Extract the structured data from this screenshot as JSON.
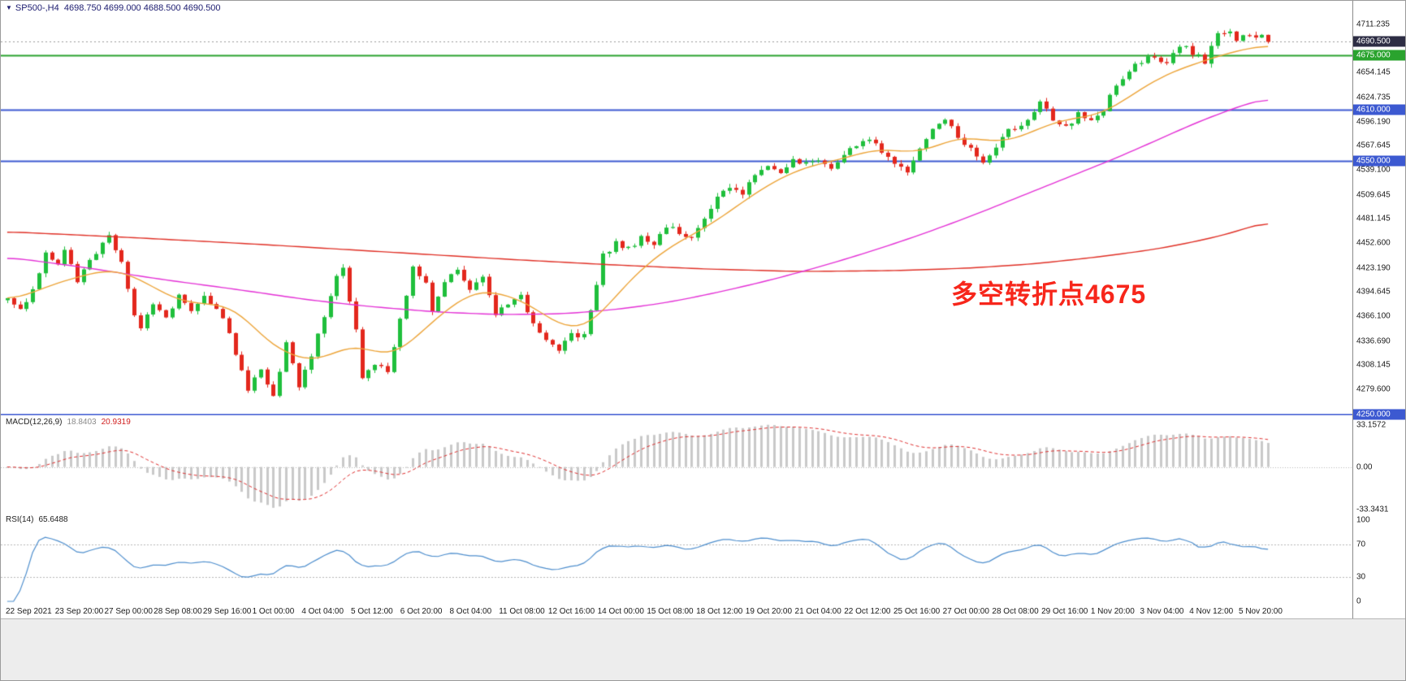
{
  "header": {
    "dropdown_icon": "▼",
    "symbol_timeframe": "SP500-,H4",
    "ohlc": "4698.750 4699.000 4688.500 4690.500"
  },
  "annotation": {
    "text": "多空转折点4675",
    "color": "#f7261b"
  },
  "chart_data": {
    "type": "candlestick",
    "symbol": "SP500-",
    "timeframe": "H4",
    "bars": 200,
    "seed": 77,
    "ylim": [
      4249,
      4739
    ],
    "up_color": "#1fbf3c",
    "down_color": "#e3271d",
    "current_price": 4690.5,
    "last_bar": {
      "open": 4698.75,
      "high": 4699.0,
      "low": 4688.5,
      "close": 4690.5
    },
    "price_ticks": [
      "4711.235",
      "4654.145",
      "4624.735",
      "4596.190",
      "4567.645",
      "4539.100",
      "4509.645",
      "4481.145",
      "4452.600",
      "4423.190",
      "4394.645",
      "4366.100",
      "4336.690",
      "4308.145",
      "4279.600"
    ],
    "badges": [
      {
        "label": "4690.500",
        "price": 4690.5,
        "bg": "#2d2d44"
      },
      {
        "label": "4675.000",
        "price": 4675.0,
        "bg": "#2aa32e"
      },
      {
        "label": "4610.000",
        "price": 4610.0,
        "bg": "#3c59d1"
      },
      {
        "label": "4550.000",
        "price": 4550.0,
        "bg": "#3c59d1"
      },
      {
        "label": "4250.000",
        "price": 4250.0,
        "bg": "#3c59d1"
      }
    ],
    "hlines": [
      {
        "price": 4675.0,
        "color": "#2aa32e",
        "width": 2
      },
      {
        "price": 4610.0,
        "color": "#3c59d1",
        "width": 2
      },
      {
        "price": 4550.0,
        "color": "#3c59d1",
        "width": 2
      },
      {
        "price": 4250.0,
        "color": "#3c59d1",
        "width": 2
      }
    ],
    "price_path_anchors": [
      [
        0,
        4388
      ],
      [
        2,
        4372
      ],
      [
        4,
        4398
      ],
      [
        6,
        4442
      ],
      [
        8,
        4430
      ],
      [
        9,
        4448
      ],
      [
        11,
        4408
      ],
      [
        13,
        4432
      ],
      [
        15,
        4450
      ],
      [
        16,
        4462
      ],
      [
        18,
        4428
      ],
      [
        20,
        4368
      ],
      [
        21,
        4352
      ],
      [
        23,
        4380
      ],
      [
        25,
        4365
      ],
      [
        27,
        4392
      ],
      [
        29,
        4370
      ],
      [
        31,
        4390
      ],
      [
        33,
        4378
      ],
      [
        35,
        4345
      ],
      [
        37,
        4300
      ],
      [
        38,
        4278
      ],
      [
        40,
        4305
      ],
      [
        42,
        4270
      ],
      [
        44,
        4335
      ],
      [
        46,
        4280
      ],
      [
        48,
        4320
      ],
      [
        50,
        4368
      ],
      [
        52,
        4412
      ],
      [
        53,
        4420
      ],
      [
        55,
        4350
      ],
      [
        56,
        4292
      ],
      [
        58,
        4310
      ],
      [
        60,
        4300
      ],
      [
        62,
        4360
      ],
      [
        64,
        4425
      ],
      [
        66,
        4405
      ],
      [
        67,
        4375
      ],
      [
        69,
        4408
      ],
      [
        71,
        4418
      ],
      [
        73,
        4395
      ],
      [
        75,
        4415
      ],
      [
        77,
        4365
      ],
      [
        79,
        4382
      ],
      [
        81,
        4390
      ],
      [
        83,
        4355
      ],
      [
        85,
        4340
      ],
      [
        87,
        4325
      ],
      [
        89,
        4345
      ],
      [
        91,
        4342
      ],
      [
        93,
        4405
      ],
      [
        94,
        4438
      ],
      [
        96,
        4452
      ],
      [
        98,
        4445
      ],
      [
        100,
        4458
      ],
      [
        102,
        4452
      ],
      [
        104,
        4472
      ],
      [
        106,
        4465
      ],
      [
        108,
        4458
      ],
      [
        110,
        4480
      ],
      [
        112,
        4505
      ],
      [
        114,
        4520
      ],
      [
        116,
        4510
      ],
      [
        118,
        4535
      ],
      [
        120,
        4545
      ],
      [
        122,
        4538
      ],
      [
        124,
        4552
      ],
      [
        126,
        4545
      ],
      [
        128,
        4552
      ],
      [
        130,
        4540
      ],
      [
        132,
        4558
      ],
      [
        134,
        4570
      ],
      [
        136,
        4578
      ],
      [
        138,
        4560
      ],
      [
        140,
        4545
      ],
      [
        142,
        4538
      ],
      [
        144,
        4562
      ],
      [
        146,
        4588
      ],
      [
        148,
        4598
      ],
      [
        150,
        4578
      ],
      [
        152,
        4562
      ],
      [
        154,
        4548
      ],
      [
        156,
        4565
      ],
      [
        158,
        4585
      ],
      [
        160,
        4592
      ],
      [
        162,
        4605
      ],
      [
        163,
        4618
      ],
      [
        165,
        4600
      ],
      [
        167,
        4588
      ],
      [
        169,
        4605
      ],
      [
        171,
        4598
      ],
      [
        173,
        4612
      ],
      [
        175,
        4642
      ],
      [
        177,
        4655
      ],
      [
        179,
        4668
      ],
      [
        181,
        4675
      ],
      [
        183,
        4662
      ],
      [
        185,
        4686
      ],
      [
        187,
        4678
      ],
      [
        189,
        4668
      ],
      [
        191,
        4698
      ],
      [
        193,
        4705
      ],
      [
        194,
        4692
      ],
      [
        196,
        4700
      ],
      [
        198,
        4694
      ],
      [
        199,
        4690.5
      ]
    ],
    "moving_averages": [
      {
        "name": "ma-slow-red",
        "color": "#e03026",
        "width": 1.4,
        "anchors": [
          [
            0,
            4466
          ],
          [
            20,
            4459
          ],
          [
            40,
            4451
          ],
          [
            60,
            4442
          ],
          [
            80,
            4433
          ],
          [
            95,
            4427
          ],
          [
            110,
            4422
          ],
          [
            125,
            4419
          ],
          [
            140,
            4420
          ],
          [
            152,
            4423
          ],
          [
            162,
            4428
          ],
          [
            172,
            4436
          ],
          [
            181,
            4445
          ],
          [
            188,
            4455
          ],
          [
            194,
            4466
          ],
          [
            199,
            4479
          ]
        ]
      },
      {
        "name": "ma-mid-magenta",
        "color": "#e431d6",
        "width": 1.4,
        "anchors": [
          [
            0,
            4436
          ],
          [
            12,
            4424
          ],
          [
            24,
            4410
          ],
          [
            36,
            4398
          ],
          [
            48,
            4385
          ],
          [
            58,
            4377
          ],
          [
            68,
            4371
          ],
          [
            78,
            4368
          ],
          [
            88,
            4369
          ],
          [
            96,
            4374
          ],
          [
            104,
            4382
          ],
          [
            112,
            4394
          ],
          [
            120,
            4408
          ],
          [
            128,
            4424
          ],
          [
            136,
            4442
          ],
          [
            144,
            4462
          ],
          [
            152,
            4484
          ],
          [
            160,
            4508
          ],
          [
            168,
            4532
          ],
          [
            175,
            4553
          ],
          [
            182,
            4576
          ],
          [
            188,
            4596
          ],
          [
            194,
            4613
          ],
          [
            199,
            4625
          ]
        ]
      },
      {
        "name": "ma-fast-orange",
        "color": "#eda53a",
        "width": 1.4,
        "anchors": [
          [
            0,
            4384
          ],
          [
            4,
            4394
          ],
          [
            8,
            4406
          ],
          [
            12,
            4414
          ],
          [
            16,
            4422
          ],
          [
            20,
            4414
          ],
          [
            24,
            4396
          ],
          [
            28,
            4382
          ],
          [
            32,
            4381
          ],
          [
            36,
            4376
          ],
          [
            39,
            4352
          ],
          [
            42,
            4330
          ],
          [
            45,
            4320
          ],
          [
            48,
            4312
          ],
          [
            51,
            4320
          ],
          [
            54,
            4332
          ],
          [
            57,
            4328
          ],
          [
            60,
            4318
          ],
          [
            63,
            4330
          ],
          [
            66,
            4352
          ],
          [
            69,
            4372
          ],
          [
            72,
            4388
          ],
          [
            75,
            4398
          ],
          [
            78,
            4392
          ],
          [
            81,
            4386
          ],
          [
            84,
            4372
          ],
          [
            87,
            4356
          ],
          [
            90,
            4350
          ],
          [
            93,
            4362
          ],
          [
            96,
            4390
          ],
          [
            99,
            4414
          ],
          [
            102,
            4434
          ],
          [
            105,
            4450
          ],
          [
            108,
            4462
          ],
          [
            111,
            4474
          ],
          [
            114,
            4490
          ],
          [
            117,
            4506
          ],
          [
            120,
            4521
          ],
          [
            123,
            4533
          ],
          [
            126,
            4542
          ],
          [
            129,
            4548
          ],
          [
            132,
            4552
          ],
          [
            135,
            4560
          ],
          [
            138,
            4564
          ],
          [
            141,
            4561
          ],
          [
            144,
            4560
          ],
          [
            147,
            4568
          ],
          [
            150,
            4578
          ],
          [
            153,
            4576
          ],
          [
            156,
            4572
          ],
          [
            159,
            4575
          ],
          [
            162,
            4585
          ],
          [
            165,
            4595
          ],
          [
            168,
            4600
          ],
          [
            171,
            4602
          ],
          [
            174,
            4610
          ],
          [
            177,
            4625
          ],
          [
            180,
            4640
          ],
          [
            183,
            4652
          ],
          [
            186,
            4661
          ],
          [
            189,
            4668
          ],
          [
            192,
            4676
          ],
          [
            195,
            4681
          ],
          [
            198,
            4686
          ],
          [
            199,
            4687
          ]
        ]
      }
    ],
    "macd": {
      "label": "MACD(12,26,9)",
      "value_main": "18.8403",
      "value_signal": "20.9319",
      "fast": 12,
      "slow": 26,
      "signal": 9,
      "ylim": [
        -36,
        40
      ],
      "peak_scale": 33.1572,
      "hist_color": "#c9c9c9",
      "signal_color": "#e03030",
      "zero_color": "#b8b8b8",
      "axis_ticks": [
        {
          "label": "33.1572",
          "value": 33.1572
        },
        {
          "label": "0.00",
          "value": 0
        },
        {
          "label": "-33.3431",
          "value": -33.3431
        }
      ]
    },
    "rsi": {
      "label": "RSI(14)",
      "value": "65.6488",
      "period": 14,
      "color": "#4f8fce",
      "levels": [
        70,
        30
      ],
      "axis_ticks": [
        {
          "label": "100",
          "value": 100
        },
        {
          "label": "70",
          "value": 70
        },
        {
          "label": "30",
          "value": 30
        },
        {
          "label": "0",
          "value": 0
        }
      ]
    },
    "time_ticks": [
      "22 Sep 2021",
      "23 Sep 20:00",
      "27 Sep 00:00",
      "28 Sep 08:00",
      "29 Sep 16:00",
      "1 Oct 00:00",
      "4 Oct 04:00",
      "5 Oct 12:00",
      "6 Oct 20:00",
      "8 Oct 04:00",
      "11 Oct 08:00",
      "12 Oct 16:00",
      "14 Oct 00:00",
      "15 Oct 08:00",
      "18 Oct 12:00",
      "19 Oct 20:00",
      "21 Oct 04:00",
      "22 Oct 12:00",
      "25 Oct 16:00",
      "27 Oct 00:00",
      "28 Oct 08:00",
      "29 Oct 16:00",
      "1 Nov 20:00",
      "3 Nov 04:00",
      "4 Nov 12:00",
      "5 Nov 20:00"
    ]
  }
}
